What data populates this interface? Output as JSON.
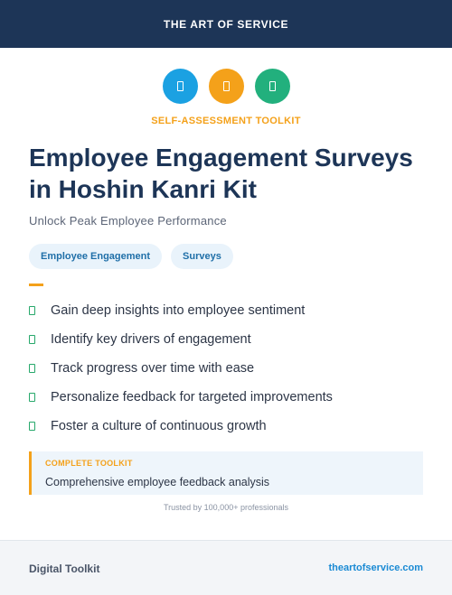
{
  "header": {
    "title": "THE ART OF SERVICE"
  },
  "icons": [
    {
      "name": "toolkit-icon-blue",
      "color": "#1ba1e2"
    },
    {
      "name": "toolkit-icon-orange",
      "color": "#f4a11a"
    },
    {
      "name": "toolkit-icon-green",
      "color": "#22b07d"
    }
  ],
  "kicker": "SELF-ASSESSMENT TOOLKIT",
  "title": "Employee Engagement Surveys in Hoshin Kanri Kit",
  "subtitle": "Unlock Peak Employee Performance",
  "tags": [
    "Employee Engagement",
    "Surveys"
  ],
  "bullets": [
    "Gain deep insights into employee sentiment",
    "Identify key drivers of engagement",
    "Track progress over time with ease",
    "Personalize feedback for targeted improvements",
    "Foster a culture of continuous growth"
  ],
  "callout": {
    "label": "COMPLETE TOOLKIT",
    "text": "Comprehensive employee feedback analysis"
  },
  "trusted": "Trusted by 100,000+ professionals",
  "footer": {
    "left": "Digital Toolkit",
    "right": "theartofservice.com"
  },
  "colors": {
    "navy": "#1d3557",
    "accent_orange": "#f4a11a",
    "bullet_green": "#27a86b",
    "link_blue": "#1a8ad4"
  }
}
